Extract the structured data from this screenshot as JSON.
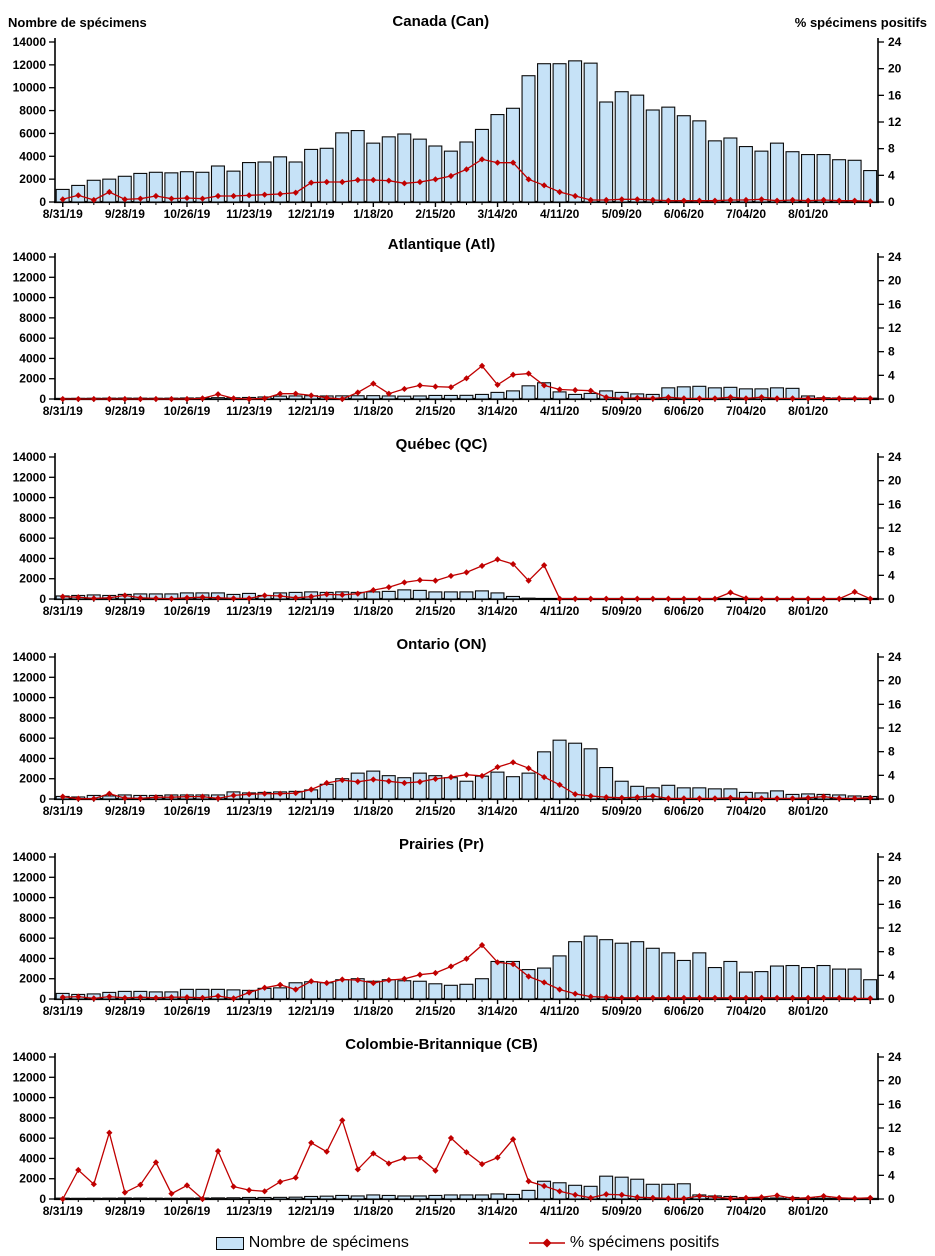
{
  "chart_data": {
    "type": "combo-bar-line",
    "left_axis": {
      "label": "Nombre de spécimens",
      "min": 0,
      "max": 14000,
      "step": 2000
    },
    "right_axis": {
      "label": "% spécimens positifs",
      "min": 0,
      "max": 24,
      "step": 4
    },
    "x_tick_labels": [
      "8/31/19",
      "9/28/19",
      "10/26/19",
      "11/23/19",
      "12/21/19",
      "1/18/20",
      "2/15/20",
      "3/14/20",
      "4/11/20",
      "5/09/20",
      "6/06/20",
      "7/04/20",
      "8/01/20"
    ],
    "x_weekly_dates": [
      "8/31/19",
      "9/07/19",
      "9/14/19",
      "9/21/19",
      "9/28/19",
      "10/05/19",
      "10/12/19",
      "10/19/19",
      "10/26/19",
      "11/02/19",
      "11/09/19",
      "11/16/19",
      "11/23/19",
      "11/30/19",
      "12/07/19",
      "12/14/19",
      "12/21/19",
      "12/28/19",
      "1/04/20",
      "1/11/20",
      "1/18/20",
      "1/25/20",
      "2/01/20",
      "2/08/20",
      "2/15/20",
      "2/22/20",
      "2/29/20",
      "3/07/20",
      "3/14/20",
      "3/21/20",
      "3/28/20",
      "4/04/20",
      "4/11/20",
      "4/18/20",
      "4/25/20",
      "5/02/20",
      "5/09/20",
      "5/16/20",
      "5/23/20",
      "5/30/20",
      "6/06/20",
      "6/13/20",
      "6/20/20",
      "6/27/20",
      "7/04/20",
      "7/11/20",
      "7/18/20",
      "7/25/20",
      "8/01/20",
      "8/08/20",
      "8/15/20",
      "8/22/20",
      "8/29/20"
    ],
    "legend": [
      "Nombre de spécimens",
      "% spécimens positifs"
    ],
    "colors": {
      "bar_fill": "#C6E2F7",
      "bar_stroke": "#0a0a0a",
      "line": "#C00000",
      "axis": "#000000"
    },
    "charts": [
      {
        "title": "Canada (Can)",
        "specimens": [
          1100,
          1450,
          1900,
          2000,
          2250,
          2500,
          2600,
          2550,
          2650,
          2600,
          3150,
          2700,
          3450,
          3500,
          3950,
          3500,
          4600,
          4700,
          6050,
          6250,
          5150,
          5700,
          5950,
          5500,
          4900,
          4450,
          5250,
          6350,
          7650,
          8200,
          11050,
          12100,
          12100,
          12350,
          12150,
          8750,
          9650,
          9350,
          8050,
          8300,
          7550,
          7100,
          5350,
          5600,
          4850,
          4450,
          5150,
          4400,
          4150,
          4150,
          3700,
          3650,
          2750
        ],
        "pct_positive": [
          0.4,
          1.0,
          0.3,
          1.5,
          0.4,
          0.5,
          0.9,
          0.5,
          0.6,
          0.5,
          0.9,
          0.9,
          1.0,
          1.1,
          1.2,
          1.4,
          2.9,
          3.0,
          3.0,
          3.3,
          3.3,
          3.2,
          2.8,
          3.0,
          3.4,
          3.9,
          4.9,
          6.4,
          5.9,
          5.9,
          3.4,
          2.5,
          1.5,
          0.9,
          0.3,
          0.3,
          0.4,
          0.4,
          0.3,
          0.2,
          0.2,
          0.2,
          0.2,
          0.3,
          0.3,
          0.4,
          0.2,
          0.3,
          0.2,
          0.3,
          0.2,
          0.2,
          0.1
        ]
      },
      {
        "title": "Atlantique (Atl)",
        "specimens": [
          50,
          60,
          70,
          80,
          90,
          80,
          70,
          80,
          100,
          110,
          130,
          120,
          150,
          200,
          280,
          300,
          320,
          300,
          310,
          320,
          330,
          300,
          280,
          300,
          350,
          350,
          360,
          450,
          650,
          800,
          1300,
          1600,
          700,
          450,
          550,
          800,
          650,
          500,
          450,
          1100,
          1200,
          1250,
          1100,
          1150,
          1000,
          1000,
          1100,
          1050,
          300,
          120,
          100,
          90,
          80
        ],
        "pct_positive": [
          0,
          0,
          0,
          0,
          0,
          0,
          0,
          0,
          0,
          0.1,
          0.8,
          0.1,
          0,
          0.1,
          0.9,
          0.9,
          0.6,
          0.2,
          0,
          1.1,
          2.6,
          0.9,
          1.7,
          2.3,
          2.1,
          2.0,
          3.5,
          5.6,
          2.4,
          4.1,
          4.3,
          2.3,
          1.6,
          1.5,
          1.4,
          0.3,
          0.1,
          0.2,
          0.1,
          0.3,
          0.1,
          0.1,
          0.1,
          0.3,
          0.1,
          0.3,
          0.1,
          0.1,
          0.1,
          0.1,
          0.1,
          0.1,
          0.1
        ]
      },
      {
        "title": "Québec (QC)",
        "specimens": [
          300,
          350,
          400,
          350,
          450,
          500,
          500,
          500,
          600,
          600,
          600,
          450,
          550,
          350,
          600,
          650,
          700,
          650,
          700,
          650,
          700,
          750,
          900,
          850,
          700,
          700,
          700,
          800,
          600,
          250,
          80,
          0,
          0,
          0,
          0,
          0,
          0,
          0,
          0,
          0,
          0,
          0,
          0,
          0,
          0,
          0,
          0,
          0,
          0,
          0,
          0,
          0,
          0
        ],
        "pct_positive": [
          0.4,
          0.3,
          0.1,
          0.2,
          0.6,
          0.2,
          0.1,
          0.05,
          0.2,
          0.3,
          0.2,
          0.1,
          0.1,
          0.6,
          0.5,
          0.2,
          0.4,
          0.8,
          0.7,
          0.9,
          1.5,
          2.0,
          2.8,
          3.2,
          3.1,
          3.9,
          4.5,
          5.6,
          6.7,
          5.9,
          3.1,
          5.7,
          0.05,
          0.05,
          0.05,
          0.05,
          0.05,
          0.05,
          0.05,
          0.05,
          0.05,
          0.05,
          0.05,
          1.1,
          0.1,
          0.05,
          0.05,
          0.05,
          0.05,
          0.05,
          0.05,
          1.2,
          0.05
        ]
      },
      {
        "title": "Ontario (ON)",
        "specimens": [
          250,
          200,
          350,
          300,
          400,
          350,
          350,
          400,
          400,
          400,
          400,
          700,
          600,
          650,
          700,
          750,
          900,
          1450,
          2000,
          2550,
          2750,
          2300,
          2100,
          2550,
          2300,
          2100,
          1750,
          2250,
          2650,
          2200,
          2550,
          4650,
          5800,
          5500,
          4950,
          3100,
          1750,
          1250,
          1100,
          1350,
          1100,
          1100,
          1000,
          1000,
          650,
          600,
          800,
          450,
          500,
          450,
          400,
          300,
          250
        ],
        "pct_positive": [
          0.4,
          0.05,
          0.05,
          0.9,
          0.15,
          0.1,
          0.3,
          0.3,
          0.4,
          0.4,
          0.1,
          0.6,
          0.8,
          0.9,
          0.9,
          1.0,
          1.6,
          2.7,
          3.2,
          2.9,
          3.3,
          3.0,
          2.7,
          2.9,
          3.4,
          3.7,
          4.1,
          3.9,
          5.4,
          6.2,
          5.2,
          3.7,
          2.4,
          0.8,
          0.5,
          0.3,
          0.2,
          0.3,
          0.5,
          0.1,
          0.1,
          0.1,
          0.1,
          0.2,
          0.1,
          0.1,
          0.1,
          0.1,
          0.2,
          0.4,
          0.1,
          0.1,
          0.2
        ]
      },
      {
        "title": "Prairies (Pr)",
        "specimens": [
          550,
          450,
          500,
          650,
          750,
          750,
          700,
          700,
          950,
          950,
          950,
          900,
          850,
          1050,
          1100,
          1600,
          1700,
          1600,
          1900,
          2000,
          1750,
          1900,
          1800,
          1750,
          1500,
          1350,
          1450,
          2000,
          3700,
          3700,
          2900,
          3050,
          4250,
          5650,
          6200,
          5850,
          5500,
          5650,
          5000,
          4550,
          3800,
          4550,
          3100,
          3700,
          2650,
          2700,
          3250,
          3300,
          3100,
          3300,
          2950,
          2950,
          1900
        ],
        "pct_positive": [
          0.3,
          0.4,
          0.1,
          0.4,
          0.2,
          0.3,
          0.2,
          0.3,
          0.3,
          0.2,
          0.5,
          0.1,
          1.1,
          1.9,
          2.4,
          1.6,
          3.0,
          2.7,
          3.3,
          3.2,
          2.7,
          3.2,
          3.4,
          4.1,
          4.4,
          5.5,
          6.8,
          9.1,
          6.2,
          5.9,
          3.8,
          2.8,
          1.6,
          0.9,
          0.4,
          0.3,
          0.2,
          0.2,
          0.2,
          0.2,
          0.2,
          0.2,
          0.2,
          0.2,
          0.2,
          0.2,
          0.2,
          0.2,
          0.2,
          0.2,
          0.2,
          0.1,
          0.1
        ]
      },
      {
        "title": "Colombie-Britannique (CB)",
        "specimens": [
          80,
          60,
          70,
          80,
          100,
          90,
          80,
          70,
          90,
          100,
          110,
          120,
          150,
          150,
          160,
          180,
          250,
          280,
          350,
          300,
          400,
          350,
          300,
          300,
          350,
          400,
          400,
          400,
          500,
          450,
          850,
          1750,
          1600,
          1350,
          1250,
          2250,
          2150,
          1950,
          1450,
          1450,
          1500,
          400,
          300,
          250,
          150,
          100,
          100,
          150,
          100,
          80,
          60,
          60,
          50
        ],
        "pct_positive": [
          0,
          4.9,
          2.5,
          11.2,
          1.1,
          2.4,
          6.2,
          0.9,
          2.3,
          0,
          8.1,
          2.1,
          1.5,
          1.3,
          2.9,
          3.6,
          9.5,
          8.0,
          13.3,
          5.0,
          7.7,
          6.0,
          6.9,
          7.0,
          4.8,
          10.3,
          7.9,
          5.9,
          7.0,
          10.1,
          3.0,
          2.2,
          1.3,
          0.7,
          0.2,
          0.8,
          0.7,
          0.3,
          0.2,
          0.1,
          0.1,
          0.5,
          0.3,
          0.1,
          0.2,
          0.3,
          0.6,
          0.1,
          0.2,
          0.5,
          0.2,
          0.1,
          0.2
        ]
      }
    ]
  }
}
